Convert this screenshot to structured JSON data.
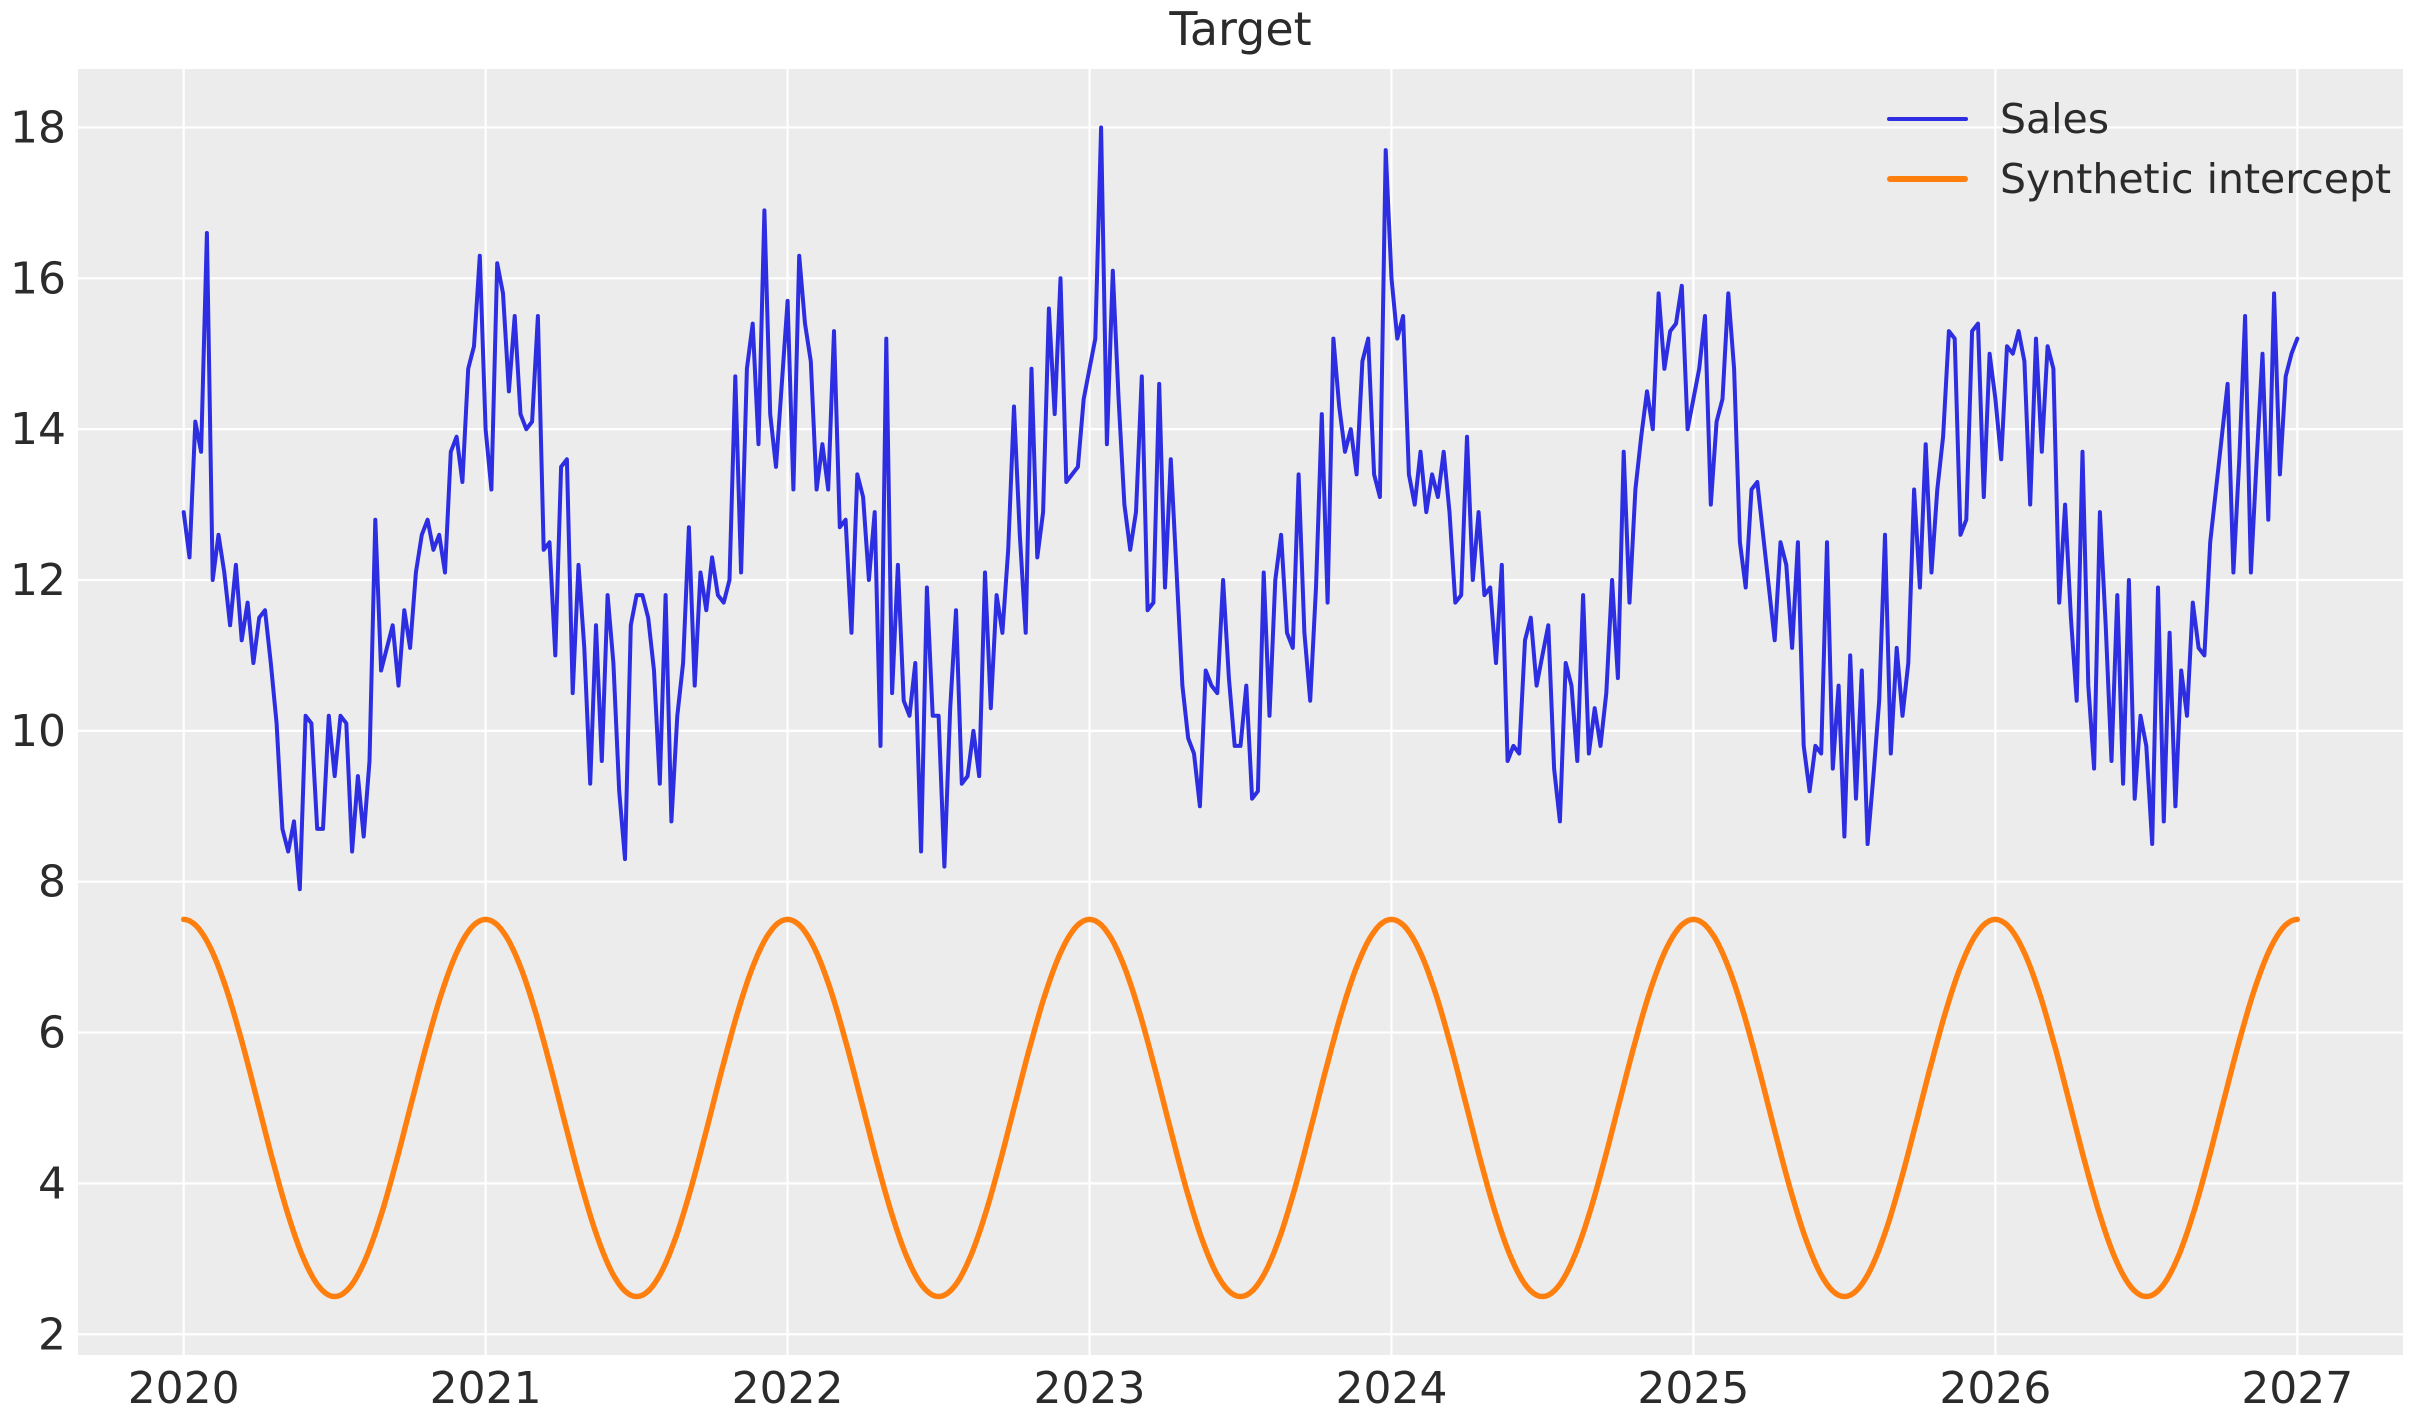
{
  "figure": {
    "background_color": "#ffffff",
    "plot_background_color": "#ececec",
    "grid_color": "#ffffff",
    "text_color": "#2b2b2b"
  },
  "chart_data": {
    "type": "line",
    "title": "Target",
    "xlabel": "",
    "ylabel": "",
    "grid": true,
    "x_ticks": [
      2020,
      2021,
      2022,
      2023,
      2024,
      2025,
      2026,
      2027
    ],
    "y_ticks": [
      2,
      4,
      6,
      8,
      10,
      12,
      14,
      16,
      18
    ],
    "xlim": [
      2019.65,
      2027.35
    ],
    "ylim": [
      1.725,
      18.775
    ],
    "legend": {
      "position": "upper right",
      "frame": false
    },
    "series": [
      {
        "name": "Sales",
        "color": "#2d2de1",
        "line_width": 4,
        "kind": "sampled",
        "x_start": 2020,
        "x_end": 2027,
        "cadence": "weekly",
        "n_points": 365,
        "values": [
          12.9,
          12.3,
          14.1,
          13.7,
          16.6,
          12.0,
          12.6,
          12.1,
          11.4,
          12.2,
          11.2,
          11.7,
          10.9,
          11.5,
          11.6,
          10.9,
          10.1,
          8.7,
          8.4,
          8.8,
          7.9,
          10.2,
          10.1,
          8.7,
          8.7,
          10.2,
          9.4,
          10.2,
          10.1,
          8.4,
          9.4,
          8.6,
          9.6,
          12.8,
          10.8,
          11.1,
          11.4,
          10.6,
          11.6,
          11.1,
          12.1,
          12.6,
          12.8,
          12.4,
          12.6,
          12.1,
          13.7,
          13.9,
          13.3,
          14.8,
          15.1,
          16.3,
          14.0,
          13.2,
          16.2,
          15.8,
          14.5,
          15.5,
          14.2,
          14.0,
          14.1,
          15.5,
          12.4,
          12.5,
          11.0,
          13.5,
          13.6,
          10.5,
          12.2,
          11.1,
          9.3,
          11.4,
          9.6,
          11.8,
          10.9,
          9.2,
          8.3,
          11.4,
          11.8,
          11.8,
          11.5,
          10.8,
          9.3,
          11.8,
          8.8,
          10.2,
          10.9,
          12.7,
          10.6,
          12.1,
          11.6,
          12.3,
          11.8,
          11.7,
          12.0,
          14.7,
          12.1,
          14.8,
          15.4,
          13.8,
          16.9,
          14.2,
          13.5,
          14.6,
          15.7,
          13.2,
          16.3,
          15.4,
          14.9,
          13.2,
          13.8,
          13.2,
          15.3,
          12.7,
          12.8,
          11.3,
          13.4,
          13.1,
          12.0,
          12.9,
          9.8,
          15.2,
          10.5,
          12.2,
          10.4,
          10.2,
          10.9,
          8.4,
          11.9,
          10.2,
          10.2,
          8.2,
          10.3,
          11.6,
          9.3,
          9.4,
          10.0,
          9.4,
          12.1,
          10.3,
          11.8,
          11.3,
          12.4,
          14.3,
          12.6,
          11.3,
          14.8,
          12.3,
          12.9,
          15.6,
          14.2,
          16.0,
          13.3,
          13.4,
          13.5,
          14.4,
          14.8,
          15.2,
          18.0,
          13.8,
          16.1,
          14.4,
          13.0,
          12.4,
          12.9,
          14.7,
          11.6,
          11.7,
          14.6,
          11.9,
          13.6,
          12.1,
          10.6,
          9.9,
          9.7,
          9.0,
          10.8,
          10.6,
          10.5,
          12.0,
          10.7,
          9.8,
          9.8,
          10.6,
          9.1,
          9.2,
          12.1,
          10.2,
          12.0,
          12.6,
          11.3,
          11.1,
          13.4,
          11.3,
          10.4,
          11.9,
          14.2,
          11.7,
          15.2,
          14.3,
          13.7,
          14.0,
          13.4,
          14.9,
          15.2,
          13.4,
          13.1,
          17.7,
          16.0,
          15.2,
          15.5,
          13.4,
          13.0,
          13.7,
          12.9,
          13.4,
          13.1,
          13.7,
          12.9,
          11.7,
          11.8,
          13.9,
          12.0,
          12.9,
          11.8,
          11.9,
          10.9,
          12.2,
          9.6,
          9.8,
          9.7,
          11.2,
          11.5,
          10.6,
          11.0,
          11.4,
          9.5,
          8.8,
          10.9,
          10.6,
          9.6,
          11.8,
          9.7,
          10.3,
          9.8,
          10.5,
          12.0,
          10.7,
          13.7,
          11.7,
          13.2,
          13.9,
          14.5,
          14.0,
          15.8,
          14.8,
          15.3,
          15.4,
          15.9,
          14.0,
          14.4,
          14.8,
          15.5,
          13.0,
          14.1,
          14.4,
          15.8,
          14.8,
          12.5,
          11.9,
          13.2,
          13.3,
          12.6,
          11.9,
          11.2,
          12.5,
          12.2,
          11.1,
          12.5,
          9.8,
          9.2,
          9.8,
          9.7,
          12.5,
          9.5,
          10.6,
          8.6,
          11.0,
          9.1,
          10.8,
          8.5,
          9.4,
          10.4,
          12.6,
          9.7,
          11.1,
          10.2,
          10.9,
          13.2,
          11.9,
          13.8,
          12.1,
          13.2,
          13.9,
          15.3,
          15.2,
          12.6,
          12.8,
          15.3,
          15.4,
          13.1,
          15.0,
          14.4,
          13.6,
          15.1,
          15.0,
          15.3,
          14.9,
          13.0,
          15.2,
          13.7,
          15.1,
          14.8,
          11.7,
          13.0,
          11.5,
          10.4,
          13.7,
          10.6,
          9.5,
          12.9,
          11.4,
          9.6,
          11.8,
          9.3,
          12.0,
          9.1,
          10.2,
          9.8,
          8.5,
          11.9,
          8.8,
          11.3,
          9.0,
          10.8,
          10.2,
          11.7,
          11.1,
          11.0,
          12.5,
          13.2,
          13.9,
          14.6,
          12.1,
          13.6,
          15.5,
          12.1,
          13.6,
          15.0,
          12.8,
          15.8,
          13.4,
          14.7,
          15.0,
          15.2
        ]
      },
      {
        "name": "Synthetic intercept",
        "color": "#ff7f0e",
        "line_width": 5.5,
        "kind": "cosine",
        "baseline": 5.0,
        "amplitude": 2.5,
        "period_years": 1,
        "peak_at": "year start",
        "x_start": 2020,
        "x_end": 2027,
        "min": 2.5,
        "max": 7.5
      }
    ]
  }
}
